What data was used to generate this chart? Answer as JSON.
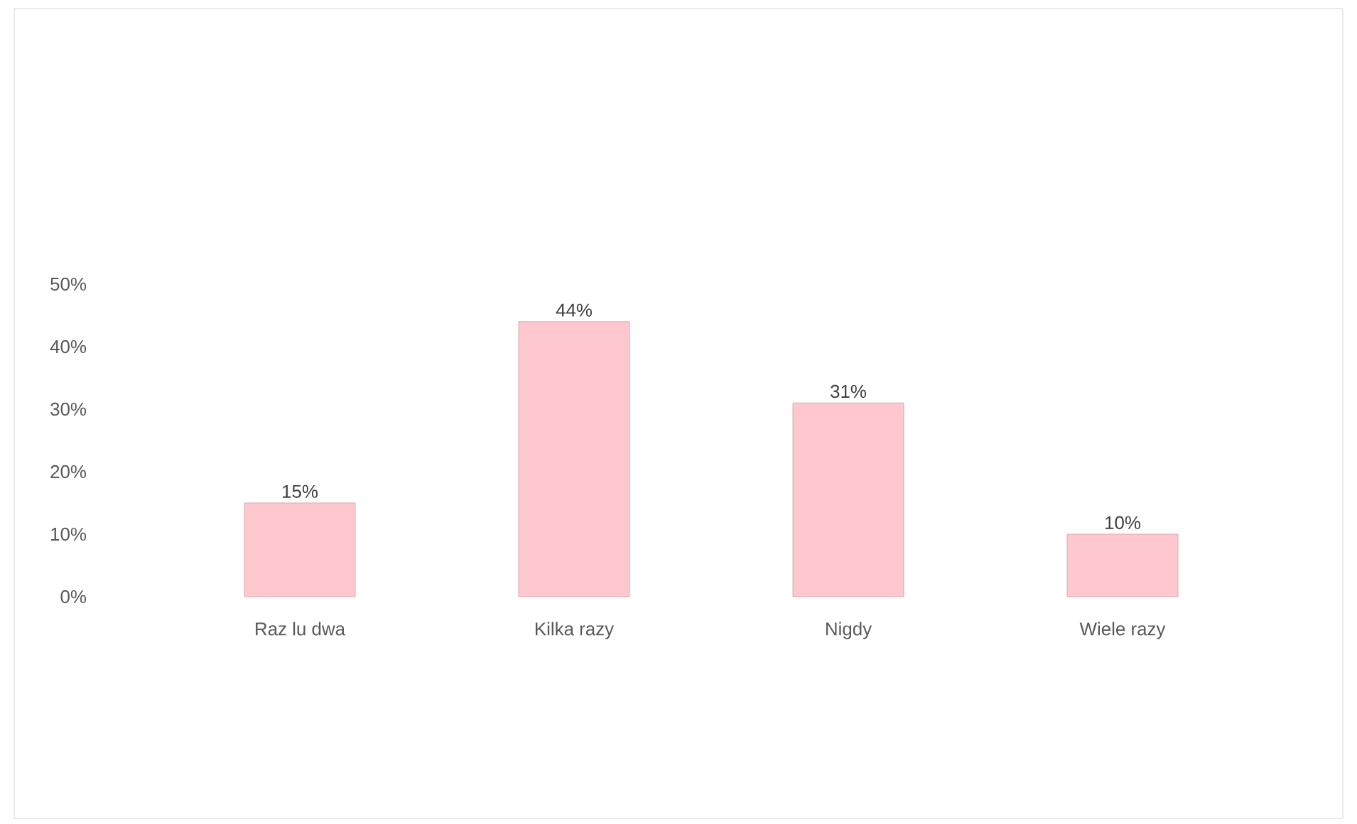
{
  "chart_data": {
    "type": "bar",
    "categories": [
      "Raz lu dwa",
      "Kilka razy",
      "Nigdy",
      "Wiele razy"
    ],
    "values": [
      15,
      44,
      31,
      10
    ],
    "value_labels": [
      "15%",
      "44%",
      "31%",
      "10%"
    ],
    "color": "#ffc7ce",
    "ylim": [
      0,
      50
    ],
    "yticks": [
      {
        "value": 0,
        "label": "0%"
      },
      {
        "value": 10,
        "label": "10%"
      },
      {
        "value": 20,
        "label": "20%"
      },
      {
        "value": 30,
        "label": "30%"
      },
      {
        "value": 40,
        "label": "40%"
      },
      {
        "value": 50,
        "label": "50%"
      }
    ],
    "grid": false
  }
}
